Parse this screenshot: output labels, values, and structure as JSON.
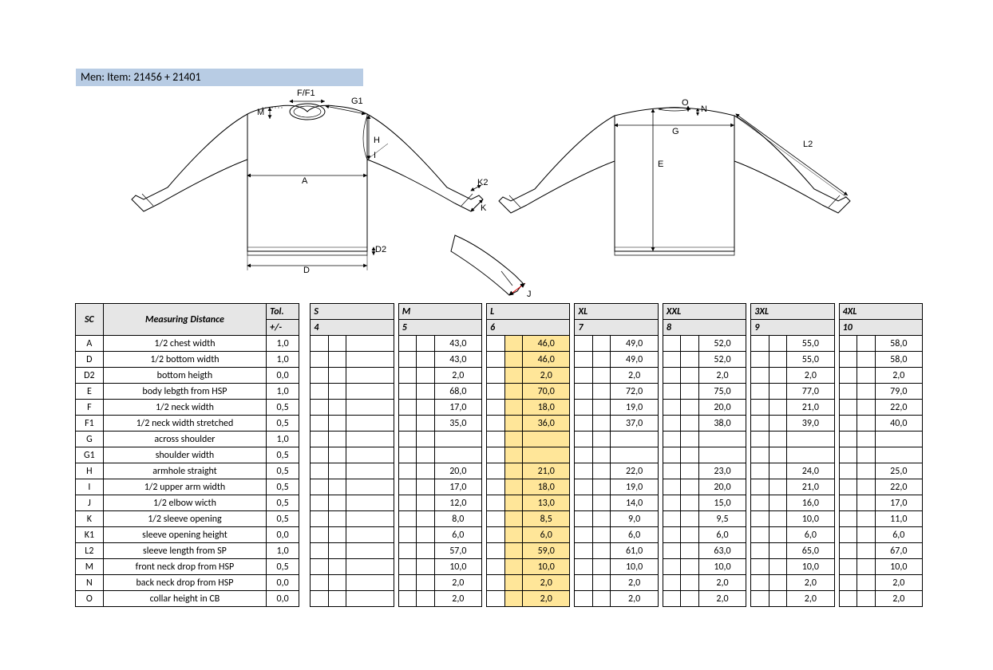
{
  "title": "Men: Item: 21456 + 21401",
  "diagram_labels": {
    "ff1": "F/F1",
    "g1": "G1",
    "m": "M",
    "a": "A",
    "h": "H",
    "i": "I",
    "k": "K",
    "k2": "K2",
    "d": "D",
    "d2": "D2",
    "j": "J",
    "e": "E",
    "g": "G",
    "o": "O",
    "n": "N",
    "l2": "L2"
  },
  "columns": {
    "sc": "SC",
    "name": "Measuring Distance",
    "tol_top": "Tol.",
    "tol_bot": "+/-",
    "sizes": [
      {
        "label": "S",
        "num": "4"
      },
      {
        "label": "M",
        "num": "5"
      },
      {
        "label": "L",
        "num": "6",
        "highlight": true
      },
      {
        "label": "XL",
        "num": "7"
      },
      {
        "label": "XXL",
        "num": "8"
      },
      {
        "label": "3XL",
        "num": "9"
      },
      {
        "label": "4XL",
        "num": "10"
      }
    ]
  },
  "rows": [
    {
      "sc": "A",
      "name": "1/2 chest width",
      "tol": "1,0",
      "vals": [
        "",
        "43,0",
        "46,0",
        "49,0",
        "52,0",
        "55,0",
        "58,0"
      ]
    },
    {
      "sc": "D",
      "name": "1/2 bottom width",
      "tol": "1,0",
      "vals": [
        "",
        "43,0",
        "46,0",
        "49,0",
        "52,0",
        "55,0",
        "58,0"
      ]
    },
    {
      "sc": "D2",
      "name": "bottom heigth",
      "tol": "0,0",
      "vals": [
        "",
        "2,0",
        "2,0",
        "2,0",
        "2,0",
        "2,0",
        "2,0"
      ]
    },
    {
      "sc": "E",
      "name": "body lebgth from HSP",
      "tol": "1,0",
      "vals": [
        "",
        "68,0",
        "70,0",
        "72,0",
        "75,0",
        "77,0",
        "79,0"
      ]
    },
    {
      "sc": "F",
      "name": "1/2 neck width",
      "tol": "0,5",
      "vals": [
        "",
        "17,0",
        "18,0",
        "19,0",
        "20,0",
        "21,0",
        "22,0"
      ]
    },
    {
      "sc": "F1",
      "name": "1/2 neck width stretched",
      "tol": "0,5",
      "vals": [
        "",
        "35,0",
        "36,0",
        "37,0",
        "38,0",
        "39,0",
        "40,0"
      ]
    },
    {
      "sc": "G",
      "name": "across shoulder",
      "tol": "1,0",
      "vals": [
        "",
        "",
        "",
        "",
        "",
        "",
        ""
      ]
    },
    {
      "sc": "G1",
      "name": "shoulder width",
      "tol": "0,5",
      "vals": [
        "",
        "",
        "",
        "",
        "",
        "",
        ""
      ]
    },
    {
      "sc": "H",
      "name": "armhole straight",
      "tol": "0,5",
      "vals": [
        "",
        "20,0",
        "21,0",
        "22,0",
        "23,0",
        "24,0",
        "25,0"
      ]
    },
    {
      "sc": "I",
      "name": "1/2 upper arm width",
      "tol": "0,5",
      "vals": [
        "",
        "17,0",
        "18,0",
        "19,0",
        "20,0",
        "21,0",
        "22,0"
      ]
    },
    {
      "sc": "J",
      "name": "1/2 elbow wicth",
      "tol": "0,5",
      "vals": [
        "",
        "12,0",
        "13,0",
        "14,0",
        "15,0",
        "16,0",
        "17,0"
      ]
    },
    {
      "sc": "K",
      "name": "1/2 sleeve opening",
      "tol": "0,5",
      "vals": [
        "",
        "8,0",
        "8,5",
        "9,0",
        "9,5",
        "10,0",
        "11,0"
      ]
    },
    {
      "sc": "K1",
      "name": "sleeve opening height",
      "tol": "0,0",
      "vals": [
        "",
        "6,0",
        "6,0",
        "6,0",
        "6,0",
        "6,0",
        "6,0"
      ]
    },
    {
      "sc": "L2",
      "name": "sleeve length from SP",
      "tol": "1,0",
      "vals": [
        "",
        "57,0",
        "59,0",
        "61,0",
        "63,0",
        "65,0",
        "67,0"
      ]
    },
    {
      "sc": "M",
      "name": "front neck drop from HSP",
      "tol": "0,5",
      "vals": [
        "",
        "10,0",
        "10,0",
        "10,0",
        "10,0",
        "10,0",
        "10,0"
      ]
    },
    {
      "sc": "N",
      "name": "back neck drop from HSP",
      "tol": "0,0",
      "vals": [
        "",
        "2,0",
        "2,0",
        "2,0",
        "2,0",
        "2,0",
        "2,0"
      ]
    },
    {
      "sc": "O",
      "name": "collar height in CB",
      "tol": "0,0",
      "vals": [
        "",
        "2,0",
        "2,0",
        "2,0",
        "2,0",
        "2,0",
        "2,0"
      ]
    }
  ],
  "style": {
    "header_bg": "#e6e6e6",
    "highlight_bg": "#ffe699",
    "title_bg": "#b8cce4",
    "border_color": "#000000",
    "font_family": "Calibri",
    "font_size_pt": 9
  }
}
